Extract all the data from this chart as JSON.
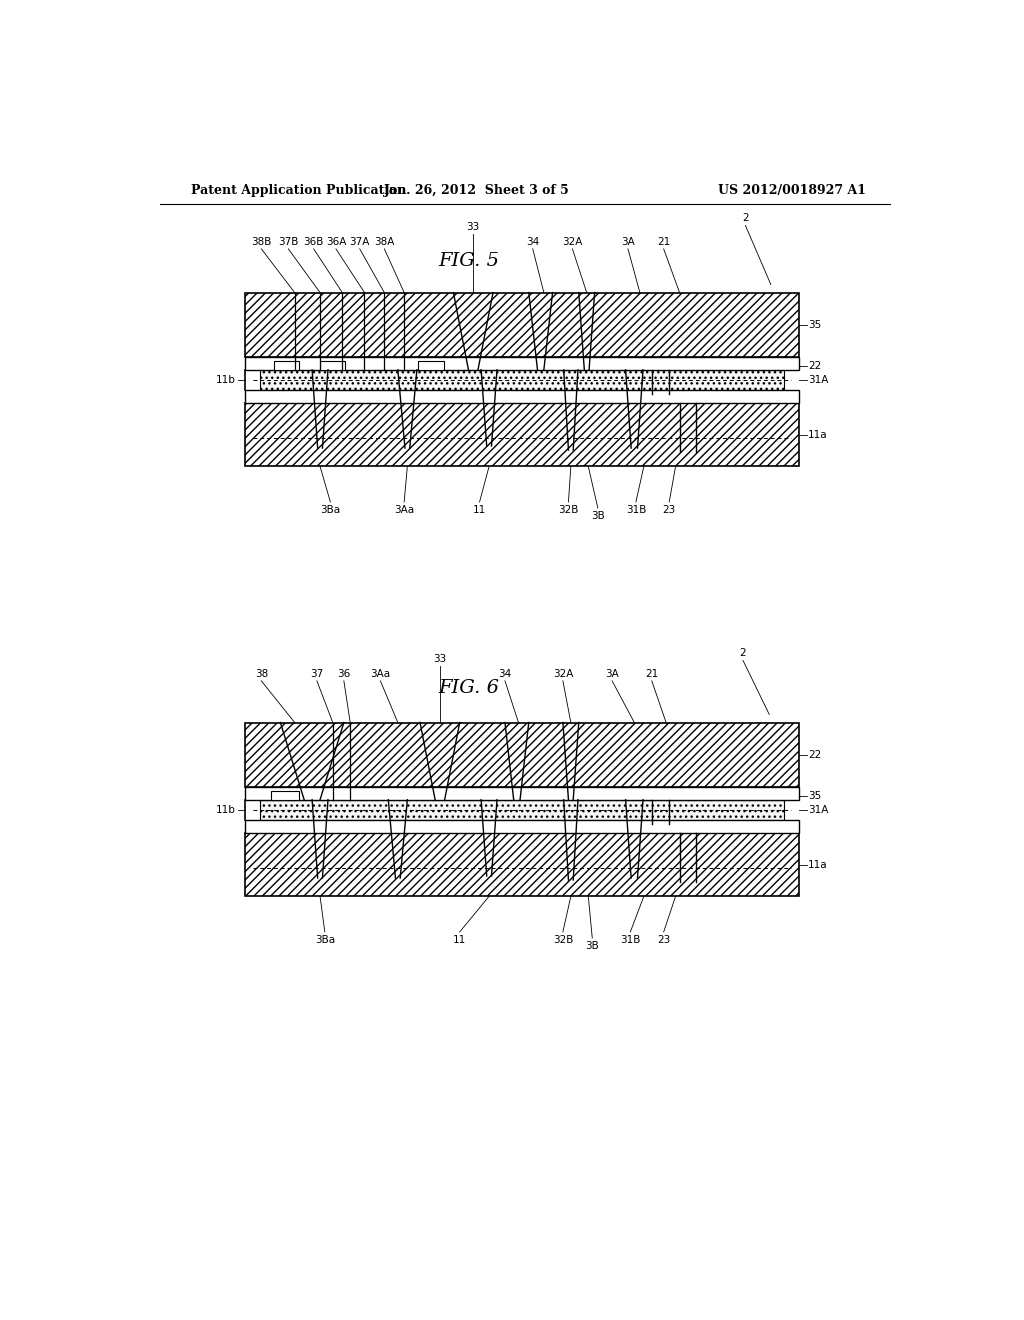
{
  "bg_color": "#ffffff",
  "header_left": "Patent Application Publication",
  "header_mid": "Jan. 26, 2012  Sheet 3 of 5",
  "header_right": "US 2012/0018927 A1",
  "fig5_title": "FIG. 5",
  "fig6_title": "FIG. 6",
  "line_color": "#000000",
  "label_fontsize": 7.5,
  "title_fontsize": 14
}
